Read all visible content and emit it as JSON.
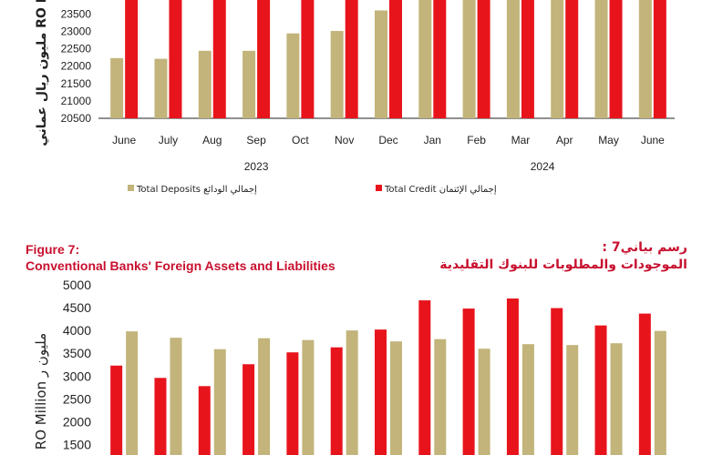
{
  "colors": {
    "credit": "#e8141c",
    "deposits": "#c2b47a",
    "title": "#c8102e",
    "axis": "#222222",
    "text": "#222222"
  },
  "chart_data": [
    {
      "type": "bar",
      "ylabel": "مليون ريال عماني RO M",
      "yticks": [
        20500,
        21000,
        21500,
        22000,
        22500,
        23000,
        23500
      ],
      "ylim": [
        20500,
        23900
      ],
      "categories": [
        "June",
        "July",
        "Aug",
        "Sep",
        "Oct",
        "Nov",
        "Dec",
        "Jan",
        "Feb",
        "Mar",
        "Apr",
        "May",
        "June"
      ],
      "year_labels": [
        {
          "label": "2023",
          "span": [
            0,
            6
          ]
        },
        {
          "label": "2024",
          "span": [
            7,
            12
          ]
        }
      ],
      "series": [
        {
          "name": "Total Deposits إجمالي الودائع",
          "key": "deposits",
          "values": [
            22230,
            22210,
            22440,
            22440,
            22940,
            23010,
            23600,
            23900,
            23900,
            23900,
            23900,
            23900,
            23900
          ]
        },
        {
          "name": "Total Credit إجمالي الإئتمان",
          "key": "credit",
          "values": [
            23900,
            23900,
            23900,
            23900,
            23900,
            23900,
            23900,
            23900,
            23900,
            23900,
            23900,
            23900,
            23900
          ]
        }
      ],
      "legend": [
        {
          "key": "deposits",
          "en": "Total Deposits",
          "ar": "إجمالي الودائع"
        },
        {
          "key": "credit",
          "en": "Total Credit",
          "ar": "إجمالي الإئتمان"
        }
      ]
    },
    {
      "type": "bar",
      "title_en_line1": "Figure 7:",
      "title_en_line2": "Conventional Banks' Foreign Assets and Liabilities",
      "title_ar_line1": "رسم بياني7 :",
      "title_ar_line2": "الموجودات والمطلوبات للبنوك التقليدية",
      "ylabel": "RO Million مليون ر",
      "yticks": [
        1500,
        2000,
        2500,
        3000,
        3500,
        4000,
        4500,
        5000
      ],
      "ylim": [
        1300,
        5000
      ],
      "series": [
        {
          "key": "credit",
          "values": [
            3230,
            2960,
            2780,
            3260,
            3520,
            3630,
            4020,
            4660,
            4480,
            4700,
            4490,
            4110,
            4370
          ]
        },
        {
          "key": "deposits",
          "values": [
            3980,
            3840,
            3590,
            3830,
            3790,
            4000,
            3760,
            3810,
            3600,
            3700,
            3680,
            3720,
            3990
          ]
        }
      ]
    }
  ]
}
